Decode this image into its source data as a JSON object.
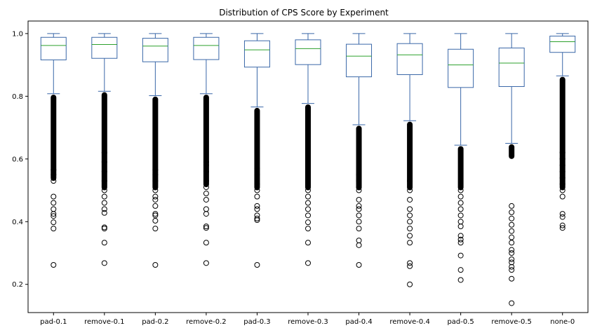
{
  "chart_data": {
    "type": "box",
    "title": "Distribution of CPS Score by Experiment",
    "xlabel": "",
    "ylabel": "",
    "ylim": [
      0.11,
      1.04
    ],
    "yticks": [
      0.2,
      0.4,
      0.6,
      0.8,
      1.0
    ],
    "ytick_labels": [
      "0.2",
      "0.4",
      "0.6",
      "0.8",
      "1.0"
    ],
    "grid": false,
    "colors": {
      "box": "#3a67a8",
      "median": "#2ca02c",
      "flier": "#000000"
    },
    "categories": [
      "pad-0.1",
      "remove-0.1",
      "pad-0.2",
      "remove-0.2",
      "pad-0.3",
      "remove-0.3",
      "pad-0.4",
      "remove-0.4",
      "pad-0.5",
      "remove-0.5",
      "none-0"
    ],
    "boxes": [
      {
        "label": "pad-0.1",
        "whisker_low": 0.808,
        "q1": 0.916,
        "median": 0.962,
        "q3": 0.988,
        "whisker_high": 1.0,
        "outliers": [
          0.262,
          0.378,
          0.398,
          0.418,
          0.425,
          0.44,
          0.46,
          0.48,
          0.53,
          0.55,
          0.565
        ]
      },
      {
        "label": "remove-0.1",
        "whisker_low": 0.816,
        "q1": 0.921,
        "median": 0.965,
        "q3": 0.988,
        "whisker_high": 1.0,
        "outliers": [
          0.268,
          0.333,
          0.378,
          0.382,
          0.428,
          0.44,
          0.46,
          0.48,
          0.5,
          0.53,
          0.56,
          0.59,
          0.62
        ]
      },
      {
        "label": "pad-0.2",
        "whisker_low": 0.802,
        "q1": 0.91,
        "median": 0.96,
        "q3": 0.985,
        "whisker_high": 1.0,
        "outliers": [
          0.262,
          0.378,
          0.403,
          0.42,
          0.425,
          0.45,
          0.47,
          0.48,
          0.5,
          0.53,
          0.55,
          0.565
        ]
      },
      {
        "label": "remove-0.2",
        "whisker_low": 0.808,
        "q1": 0.917,
        "median": 0.962,
        "q3": 0.988,
        "whisker_high": 1.0,
        "outliers": [
          0.268,
          0.333,
          0.38,
          0.385,
          0.425,
          0.44,
          0.47,
          0.49,
          0.51,
          0.53,
          0.56,
          0.58,
          0.59
        ]
      },
      {
        "label": "pad-0.3",
        "whisker_low": 0.766,
        "q1": 0.893,
        "median": 0.948,
        "q3": 0.977,
        "whisker_high": 1.0,
        "outliers": [
          0.262,
          0.405,
          0.41,
          0.42,
          0.44,
          0.45,
          0.48,
          0.5,
          0.52,
          0.55,
          0.57
        ]
      },
      {
        "label": "remove-0.3",
        "whisker_low": 0.777,
        "q1": 0.901,
        "median": 0.952,
        "q3": 0.98,
        "whisker_high": 1.0,
        "outliers": [
          0.268,
          0.333,
          0.378,
          0.398,
          0.42,
          0.44,
          0.46,
          0.48,
          0.5,
          0.52,
          0.54
        ]
      },
      {
        "label": "pad-0.4",
        "whisker_low": 0.709,
        "q1": 0.862,
        "median": 0.928,
        "q3": 0.966,
        "whisker_high": 1.0,
        "outliers": [
          0.262,
          0.325,
          0.34,
          0.378,
          0.4,
          0.42,
          0.44,
          0.45,
          0.47,
          0.5,
          0.51,
          0.53,
          0.55
        ]
      },
      {
        "label": "remove-0.4",
        "whisker_low": 0.722,
        "q1": 0.869,
        "median": 0.932,
        "q3": 0.968,
        "whisker_high": 1.0,
        "outliers": [
          0.2,
          0.258,
          0.268,
          0.333,
          0.355,
          0.378,
          0.4,
          0.42,
          0.44,
          0.47,
          0.5,
          0.53
        ]
      },
      {
        "label": "pad-0.5",
        "whisker_low": 0.644,
        "q1": 0.828,
        "median": 0.9,
        "q3": 0.95,
        "whisker_high": 1.0,
        "outliers": [
          0.214,
          0.246,
          0.292,
          0.333,
          0.343,
          0.355,
          0.385,
          0.4,
          0.42,
          0.44,
          0.46,
          0.48,
          0.5
        ]
      },
      {
        "label": "remove-0.5",
        "whisker_low": 0.65,
        "q1": 0.831,
        "median": 0.906,
        "q3": 0.954,
        "whisker_high": 1.0,
        "outliers": [
          0.14,
          0.218,
          0.246,
          0.256,
          0.27,
          0.28,
          0.3,
          0.31,
          0.333,
          0.35,
          0.37,
          0.39,
          0.41,
          0.43,
          0.45
        ]
      },
      {
        "label": "none-0",
        "whisker_low": 0.865,
        "q1": 0.94,
        "median": 0.974,
        "q3": 0.992,
        "whisker_high": 1.0,
        "outliers": [
          0.38,
          0.388,
          0.415,
          0.425,
          0.48,
          0.5,
          0.52,
          0.54,
          0.56,
          0.58,
          0.6,
          0.62
        ]
      }
    ]
  }
}
